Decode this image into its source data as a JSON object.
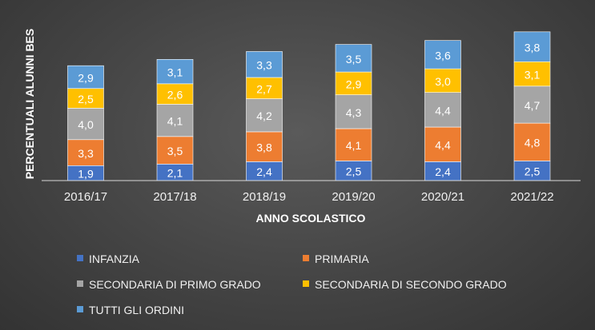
{
  "chart_data": {
    "type": "bar",
    "stacked": true,
    "title": "",
    "xlabel": "ANNO SCOLASTICO",
    "ylabel": "PERCENTUALI ALUNNI BES",
    "categories": [
      "2016/17",
      "2017/18",
      "2018/19",
      "2019/20",
      "2020/21",
      "2021/22"
    ],
    "series": [
      {
        "name": "INFANZIA",
        "color": "#4472c4",
        "values": [
          1.9,
          2.1,
          2.4,
          2.5,
          2.4,
          2.5
        ],
        "labels": [
          "1,9",
          "2,1",
          "2,4",
          "2,5",
          "2,4",
          "2,5"
        ]
      },
      {
        "name": "PRIMARIA",
        "color": "#ed7d31",
        "values": [
          3.3,
          3.5,
          3.8,
          4.1,
          4.4,
          4.8
        ],
        "labels": [
          "3,3",
          "3,5",
          "3,8",
          "4,1",
          "4,4",
          "4,8"
        ]
      },
      {
        "name": "SECONDARIA DI PRIMO GRADO",
        "color": "#a5a5a5",
        "values": [
          4.0,
          4.1,
          4.2,
          4.3,
          4.4,
          4.7
        ],
        "labels": [
          "4,0",
          "4,1",
          "4,2",
          "4,3",
          "4,4",
          "4,7"
        ]
      },
      {
        "name": "SECONDARIA DI SECONDO GRADO",
        "color": "#ffc000",
        "values": [
          2.5,
          2.6,
          2.7,
          2.9,
          3.0,
          3.1
        ],
        "labels": [
          "2,5",
          "2,6",
          "2,7",
          "2,9",
          "3,0",
          "3,1"
        ]
      },
      {
        "name": "TUTTI GLI ORDINI",
        "color": "#5b9bd5",
        "values": [
          2.9,
          3.1,
          3.3,
          3.5,
          3.6,
          3.8
        ],
        "labels": [
          "2,9",
          "3,1",
          "3,3",
          "3,5",
          "3,6",
          "3,8"
        ]
      }
    ],
    "ylim": [
      0,
      18
    ],
    "grid": false,
    "legend_position": "bottom"
  }
}
